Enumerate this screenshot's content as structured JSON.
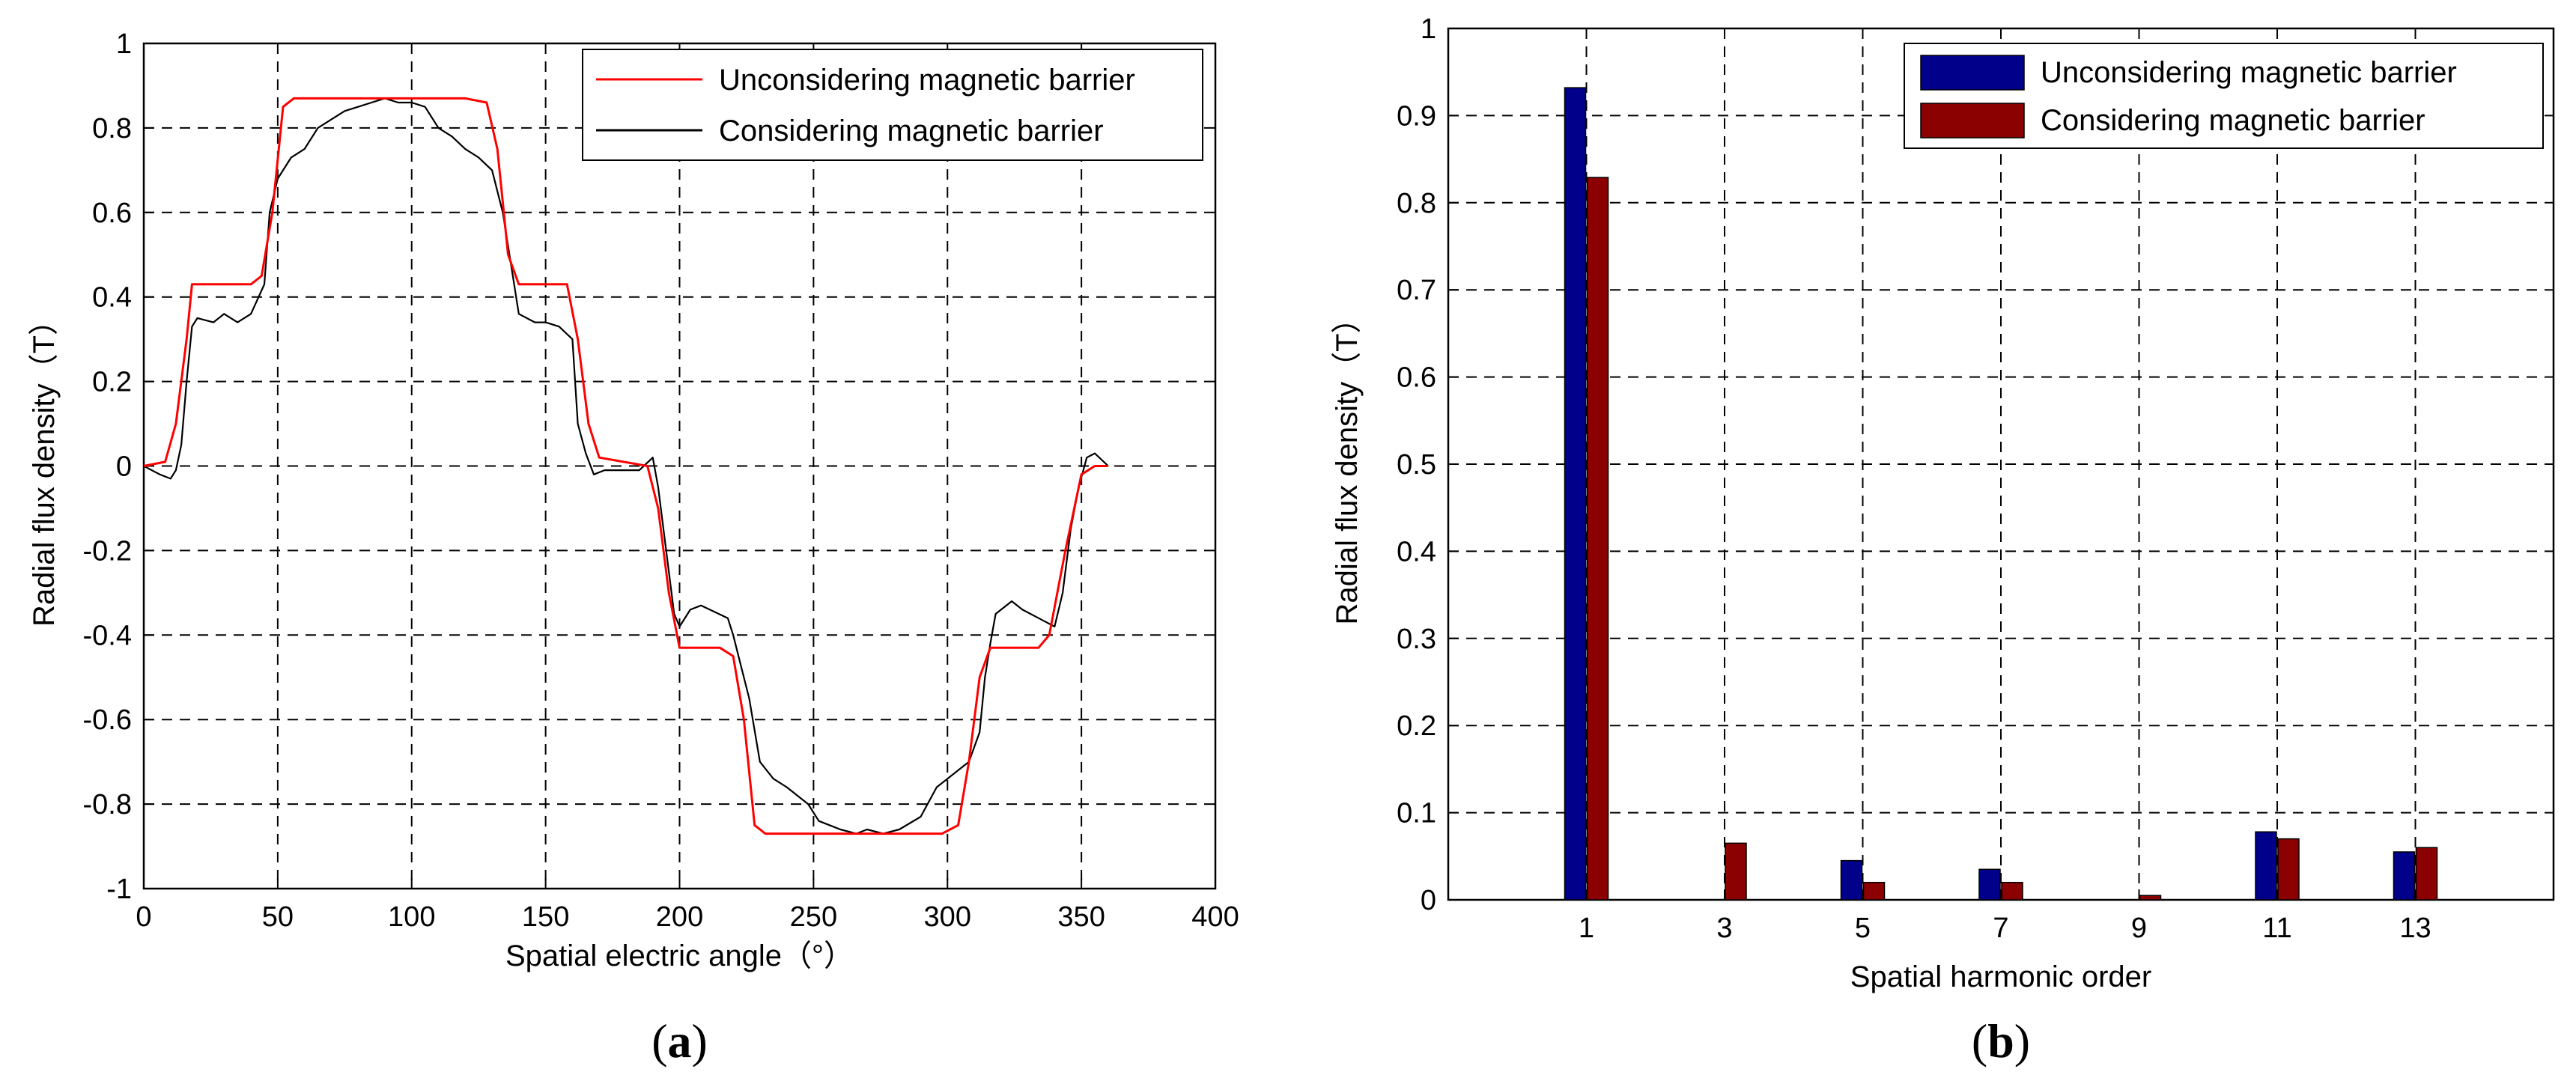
{
  "chart_data": [
    {
      "type": "line",
      "caption_letter": "a",
      "xlabel": "Spatial electric angle（°）",
      "ylabel": "Radial flux density（T）",
      "xlim": [
        0,
        400
      ],
      "ylim": [
        -1,
        1
      ],
      "xticks": [
        "0",
        "50",
        "100",
        "150",
        "200",
        "250",
        "300",
        "350",
        "400"
      ],
      "yticks": [
        "-1",
        "-0.8",
        "-0.6",
        "-0.4",
        "-0.2",
        "0",
        "0.2",
        "0.4",
        "0.6",
        "0.8",
        "1"
      ],
      "grid": true,
      "legend_position": "top-right",
      "series": [
        {
          "name": "Unconsidering magnetic barrier",
          "color": "#ff0000",
          "x": [
            0,
            8,
            12,
            16,
            18,
            40,
            44,
            48,
            52,
            56,
            120,
            128,
            132,
            136,
            140,
            158,
            162,
            166,
            170,
            188,
            192,
            196,
            200,
            215,
            220,
            224,
            228,
            232,
            298,
            304,
            308,
            312,
            316,
            334,
            338,
            344,
            350,
            355,
            360
          ],
          "values": [
            0,
            0.01,
            0.1,
            0.3,
            0.43,
            0.43,
            0.45,
            0.6,
            0.85,
            0.87,
            0.87,
            0.86,
            0.75,
            0.5,
            0.43,
            0.43,
            0.3,
            0.1,
            0.02,
            0,
            -0.1,
            -0.3,
            -0.43,
            -0.43,
            -0.45,
            -0.6,
            -0.85,
            -0.87,
            -0.87,
            -0.85,
            -0.7,
            -0.5,
            -0.43,
            -0.43,
            -0.4,
            -0.2,
            -0.02,
            0,
            0
          ]
        },
        {
          "name": "Considering magnetic barrier",
          "color": "#000000",
          "x": [
            0,
            6,
            10,
            12,
            14,
            16,
            18,
            20,
            26,
            30,
            35,
            40,
            45,
            47,
            50,
            55,
            60,
            65,
            70,
            75,
            80,
            85,
            90,
            95,
            100,
            105,
            110,
            115,
            120,
            125,
            130,
            134,
            138,
            140,
            146,
            150,
            155,
            160,
            162,
            165,
            168,
            172,
            185,
            190,
            192,
            195,
            198,
            200,
            204,
            208,
            218,
            220,
            222,
            226,
            230,
            235,
            240,
            248,
            252,
            256,
            260,
            266,
            270,
            276,
            282,
            290,
            296,
            300,
            304,
            308,
            312,
            314,
            316,
            318,
            320,
            324,
            328,
            334,
            340,
            343,
            346,
            349,
            352,
            355,
            360
          ],
          "values": [
            0,
            -0.02,
            -0.03,
            -0.01,
            0.05,
            0.2,
            0.33,
            0.35,
            0.34,
            0.36,
            0.34,
            0.36,
            0.43,
            0.6,
            0.68,
            0.73,
            0.75,
            0.8,
            0.82,
            0.84,
            0.85,
            0.86,
            0.87,
            0.86,
            0.86,
            0.85,
            0.8,
            0.78,
            0.75,
            0.73,
            0.7,
            0.6,
            0.44,
            0.36,
            0.34,
            0.34,
            0.33,
            0.3,
            0.1,
            0.03,
            -0.02,
            -0.01,
            -0.01,
            0.02,
            -0.05,
            -0.2,
            -0.35,
            -0.38,
            -0.34,
            -0.33,
            -0.36,
            -0.4,
            -0.45,
            -0.55,
            -0.7,
            -0.74,
            -0.76,
            -0.8,
            -0.84,
            -0.85,
            -0.86,
            -0.87,
            -0.86,
            -0.87,
            -0.86,
            -0.83,
            -0.76,
            -0.74,
            -0.72,
            -0.7,
            -0.63,
            -0.5,
            -0.42,
            -0.35,
            -0.34,
            -0.32,
            -0.34,
            -0.36,
            -0.38,
            -0.3,
            -0.15,
            -0.05,
            0.02,
            0.03,
            0.0
          ]
        }
      ]
    },
    {
      "type": "bar",
      "caption_letter": "b",
      "xlabel": "Spatial harmonic order",
      "ylabel": "Radial flux density（T）",
      "categories": [
        "1",
        "3",
        "5",
        "7",
        "9",
        "11",
        "13"
      ],
      "ylim": [
        0,
        1
      ],
      "yticks": [
        "0",
        "0.1",
        "0.2",
        "0.3",
        "0.4",
        "0.5",
        "0.6",
        "0.7",
        "0.8",
        "0.9",
        "1"
      ],
      "grid": true,
      "legend_position": "top-right",
      "series": [
        {
          "name": "Unconsidering magnetic barrier",
          "color": "#00008b",
          "values": [
            0.932,
            0,
            0.045,
            0.035,
            0,
            0.078,
            0.055
          ]
        },
        {
          "name": "Considering magnetic barrier",
          "color": "#8b0000",
          "values": [
            0.829,
            0.065,
            0.02,
            0.02,
            0.005,
            0.07,
            0.06
          ]
        }
      ]
    }
  ]
}
